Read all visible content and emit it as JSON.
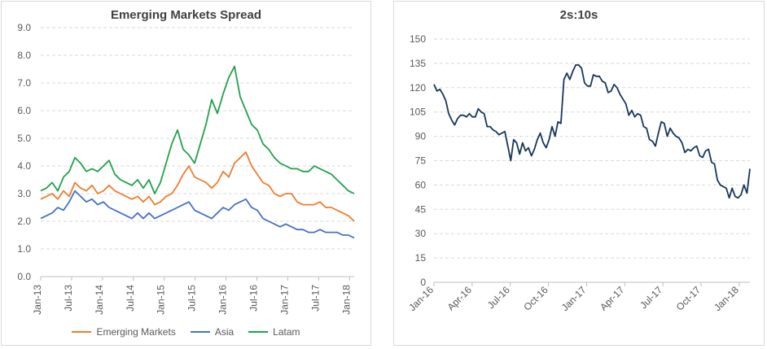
{
  "chart_data": [
    {
      "type": "line",
      "title": "Emerging Markets Spread",
      "xlabel": "",
      "ylabel": "",
      "ylim": [
        0,
        9
      ],
      "y_ticks": [
        "0.0",
        "1.0",
        "2.0",
        "3.0",
        "4.0",
        "5.0",
        "6.0",
        "7.0",
        "8.0",
        "9.0"
      ],
      "x_ticks": [
        "Jan-13",
        "Jul-13",
        "Jan-14",
        "Jul-14",
        "Jan-15",
        "Jul-15",
        "Jan-16",
        "Jul-16",
        "Jan-17",
        "Jul-17",
        "Jan-18"
      ],
      "grid": true,
      "legend": "bottom",
      "series": [
        {
          "name": "Emerging Markets",
          "color": "#ed7d31",
          "points": [
            [
              0,
              2.8
            ],
            [
              1,
              2.9
            ],
            [
              2,
              3.0
            ],
            [
              3,
              2.8
            ],
            [
              4,
              3.1
            ],
            [
              5,
              2.9
            ],
            [
              6,
              3.4
            ],
            [
              7,
              3.2
            ],
            [
              8,
              3.1
            ],
            [
              9,
              3.3
            ],
            [
              10,
              3.0
            ],
            [
              11,
              3.1
            ],
            [
              12,
              3.3
            ],
            [
              13,
              3.1
            ],
            [
              14,
              3.0
            ],
            [
              15,
              2.9
            ],
            [
              16,
              2.8
            ],
            [
              17,
              2.9
            ],
            [
              18,
              2.7
            ],
            [
              19,
              2.9
            ],
            [
              20,
              2.6
            ],
            [
              21,
              2.7
            ],
            [
              22,
              2.9
            ],
            [
              23,
              3.0
            ],
            [
              24,
              3.3
            ],
            [
              25,
              3.7
            ],
            [
              26,
              4.0
            ],
            [
              27,
              3.6
            ],
            [
              28,
              3.5
            ],
            [
              29,
              3.4
            ],
            [
              30,
              3.2
            ],
            [
              31,
              3.4
            ],
            [
              32,
              3.8
            ],
            [
              33,
              3.6
            ],
            [
              34,
              4.1
            ],
            [
              35,
              4.3
            ],
            [
              36,
              4.5
            ],
            [
              37,
              4.0
            ],
            [
              38,
              3.7
            ],
            [
              39,
              3.4
            ],
            [
              40,
              3.3
            ],
            [
              41,
              3.0
            ],
            [
              42,
              2.9
            ],
            [
              43,
              3.0
            ],
            [
              44,
              3.0
            ],
            [
              45,
              2.7
            ],
            [
              46,
              2.6
            ],
            [
              47,
              2.6
            ],
            [
              48,
              2.6
            ],
            [
              49,
              2.7
            ],
            [
              50,
              2.5
            ],
            [
              51,
              2.5
            ],
            [
              52,
              2.4
            ],
            [
              53,
              2.3
            ],
            [
              54,
              2.2
            ],
            [
              55,
              2.0
            ]
          ]
        },
        {
          "name": "Asia",
          "color": "#4472c4",
          "points": [
            [
              0,
              2.1
            ],
            [
              1,
              2.2
            ],
            [
              2,
              2.3
            ],
            [
              3,
              2.5
            ],
            [
              4,
              2.4
            ],
            [
              5,
              2.7
            ],
            [
              6,
              3.1
            ],
            [
              7,
              2.9
            ],
            [
              8,
              2.7
            ],
            [
              9,
              2.8
            ],
            [
              10,
              2.6
            ],
            [
              11,
              2.7
            ],
            [
              12,
              2.5
            ],
            [
              13,
              2.4
            ],
            [
              14,
              2.3
            ],
            [
              15,
              2.2
            ],
            [
              16,
              2.1
            ],
            [
              17,
              2.3
            ],
            [
              18,
              2.1
            ],
            [
              19,
              2.3
            ],
            [
              20,
              2.1
            ],
            [
              21,
              2.2
            ],
            [
              22,
              2.3
            ],
            [
              23,
              2.4
            ],
            [
              24,
              2.5
            ],
            [
              25,
              2.6
            ],
            [
              26,
              2.7
            ],
            [
              27,
              2.4
            ],
            [
              28,
              2.3
            ],
            [
              29,
              2.2
            ],
            [
              30,
              2.1
            ],
            [
              31,
              2.3
            ],
            [
              32,
              2.5
            ],
            [
              33,
              2.4
            ],
            [
              34,
              2.6
            ],
            [
              35,
              2.7
            ],
            [
              36,
              2.8
            ],
            [
              37,
              2.5
            ],
            [
              38,
              2.4
            ],
            [
              39,
              2.1
            ],
            [
              40,
              2.0
            ],
            [
              41,
              1.9
            ],
            [
              42,
              1.8
            ],
            [
              43,
              1.9
            ],
            [
              44,
              1.8
            ],
            [
              45,
              1.7
            ],
            [
              46,
              1.7
            ],
            [
              47,
              1.6
            ],
            [
              48,
              1.6
            ],
            [
              49,
              1.7
            ],
            [
              50,
              1.6
            ],
            [
              51,
              1.6
            ],
            [
              52,
              1.6
            ],
            [
              53,
              1.5
            ],
            [
              54,
              1.5
            ],
            [
              55,
              1.4
            ]
          ]
        },
        {
          "name": "Latam",
          "color": "#21a14b",
          "points": [
            [
              0,
              3.1
            ],
            [
              1,
              3.2
            ],
            [
              2,
              3.4
            ],
            [
              3,
              3.1
            ],
            [
              4,
              3.6
            ],
            [
              5,
              3.8
            ],
            [
              6,
              4.3
            ],
            [
              7,
              4.1
            ],
            [
              8,
              3.8
            ],
            [
              9,
              3.9
            ],
            [
              10,
              3.8
            ],
            [
              11,
              4.0
            ],
            [
              12,
              4.2
            ],
            [
              13,
              3.7
            ],
            [
              14,
              3.5
            ],
            [
              15,
              3.4
            ],
            [
              16,
              3.3
            ],
            [
              17,
              3.5
            ],
            [
              18,
              3.2
            ],
            [
              19,
              3.5
            ],
            [
              20,
              3.0
            ],
            [
              21,
              3.4
            ],
            [
              22,
              4.1
            ],
            [
              23,
              4.8
            ],
            [
              24,
              5.3
            ],
            [
              25,
              4.6
            ],
            [
              26,
              4.4
            ],
            [
              27,
              4.1
            ],
            [
              28,
              4.8
            ],
            [
              29,
              5.5
            ],
            [
              30,
              6.4
            ],
            [
              31,
              5.9
            ],
            [
              32,
              6.6
            ],
            [
              33,
              7.2
            ],
            [
              34,
              7.6
            ],
            [
              35,
              6.5
            ],
            [
              36,
              6.0
            ],
            [
              37,
              5.5
            ],
            [
              38,
              5.3
            ],
            [
              39,
              4.8
            ],
            [
              40,
              4.6
            ],
            [
              41,
              4.3
            ],
            [
              42,
              4.1
            ],
            [
              43,
              4.0
            ],
            [
              44,
              3.9
            ],
            [
              45,
              3.9
            ],
            [
              46,
              3.8
            ],
            [
              47,
              3.8
            ],
            [
              48,
              4.0
            ],
            [
              49,
              3.9
            ],
            [
              50,
              3.8
            ],
            [
              51,
              3.7
            ],
            [
              52,
              3.5
            ],
            [
              53,
              3.3
            ],
            [
              54,
              3.1
            ],
            [
              55,
              3.0
            ]
          ]
        }
      ]
    },
    {
      "type": "line",
      "title": "2s:10s",
      "xlabel": "",
      "ylabel": "",
      "ylim": [
        0,
        150
      ],
      "y_ticks": [
        "0",
        "15",
        "30",
        "45",
        "60",
        "75",
        "90",
        "105",
        "120",
        "135",
        "150"
      ],
      "x_ticks": [
        "Jan-16",
        "Apr-16",
        "Jul-16",
        "Oct-16",
        "Jan-17",
        "Apr-17",
        "Jul-17",
        "Oct-17",
        "Jan-18"
      ],
      "grid": true,
      "legend": "none",
      "series": [
        {
          "name": "",
          "color": "#16365c",
          "points": [
            [
              0,
              122
            ],
            [
              1,
              118
            ],
            [
              2,
              119
            ],
            [
              3,
              116
            ],
            [
              4,
              112
            ],
            [
              5,
              104
            ],
            [
              6,
              100
            ],
            [
              7,
              97
            ],
            [
              8,
              101
            ],
            [
              9,
              103
            ],
            [
              10,
              103
            ],
            [
              11,
              102
            ],
            [
              12,
              104
            ],
            [
              13,
              102
            ],
            [
              14,
              102
            ],
            [
              15,
              107
            ],
            [
              16,
              105
            ],
            [
              17,
              104
            ],
            [
              18,
              96
            ],
            [
              19,
              96
            ],
            [
              20,
              94
            ],
            [
              21,
              93
            ],
            [
              22,
              91
            ],
            [
              23,
              92
            ],
            [
              24,
              93
            ],
            [
              25,
              84
            ],
            [
              26,
              75
            ],
            [
              27,
              88
            ],
            [
              28,
              86
            ],
            [
              29,
              79
            ],
            [
              30,
              86
            ],
            [
              31,
              81
            ],
            [
              32,
              83
            ],
            [
              33,
              78
            ],
            [
              34,
              82
            ],
            [
              35,
              88
            ],
            [
              36,
              92
            ],
            [
              37,
              86
            ],
            [
              38,
              83
            ],
            [
              39,
              88
            ],
            [
              40,
              96
            ],
            [
              41,
              90
            ],
            [
              42,
              99
            ],
            [
              43,
              98
            ],
            [
              44,
              125
            ],
            [
              45,
              129
            ],
            [
              46,
              125
            ],
            [
              47,
              130
            ],
            [
              48,
              134
            ],
            [
              49,
              134
            ],
            [
              50,
              132
            ],
            [
              51,
              123
            ],
            [
              52,
              121
            ],
            [
              53,
              121
            ],
            [
              54,
              128
            ],
            [
              55,
              127
            ],
            [
              56,
              127
            ],
            [
              57,
              124
            ],
            [
              58,
              123
            ],
            [
              59,
              117
            ],
            [
              60,
              118
            ],
            [
              61,
              122
            ],
            [
              62,
              120
            ],
            [
              63,
              116
            ],
            [
              64,
              113
            ],
            [
              65,
              110
            ],
            [
              66,
              103
            ],
            [
              67,
              106
            ],
            [
              68,
              102
            ],
            [
              69,
              104
            ],
            [
              70,
              103
            ],
            [
              71,
              96
            ],
            [
              72,
              95
            ],
            [
              73,
              88
            ],
            [
              74,
              87
            ],
            [
              75,
              84
            ],
            [
              76,
              92
            ],
            [
              77,
              99
            ],
            [
              78,
              98
            ],
            [
              79,
              90
            ],
            [
              80,
              95
            ],
            [
              81,
              92
            ],
            [
              82,
              90
            ],
            [
              83,
              89
            ],
            [
              84,
              86
            ],
            [
              85,
              80
            ],
            [
              86,
              82
            ],
            [
              87,
              81
            ],
            [
              88,
              83
            ],
            [
              89,
              84
            ],
            [
              90,
              78
            ],
            [
              91,
              77
            ],
            [
              92,
              81
            ],
            [
              93,
              82
            ],
            [
              94,
              74
            ],
            [
              95,
              73
            ],
            [
              96,
              63
            ],
            [
              97,
              60
            ],
            [
              98,
              59
            ],
            [
              99,
              58
            ],
            [
              100,
              52
            ],
            [
              101,
              58
            ],
            [
              102,
              53
            ],
            [
              103,
              52
            ],
            [
              104,
              54
            ],
            [
              105,
              60
            ],
            [
              106,
              55
            ],
            [
              107,
              70
            ]
          ]
        }
      ]
    }
  ]
}
